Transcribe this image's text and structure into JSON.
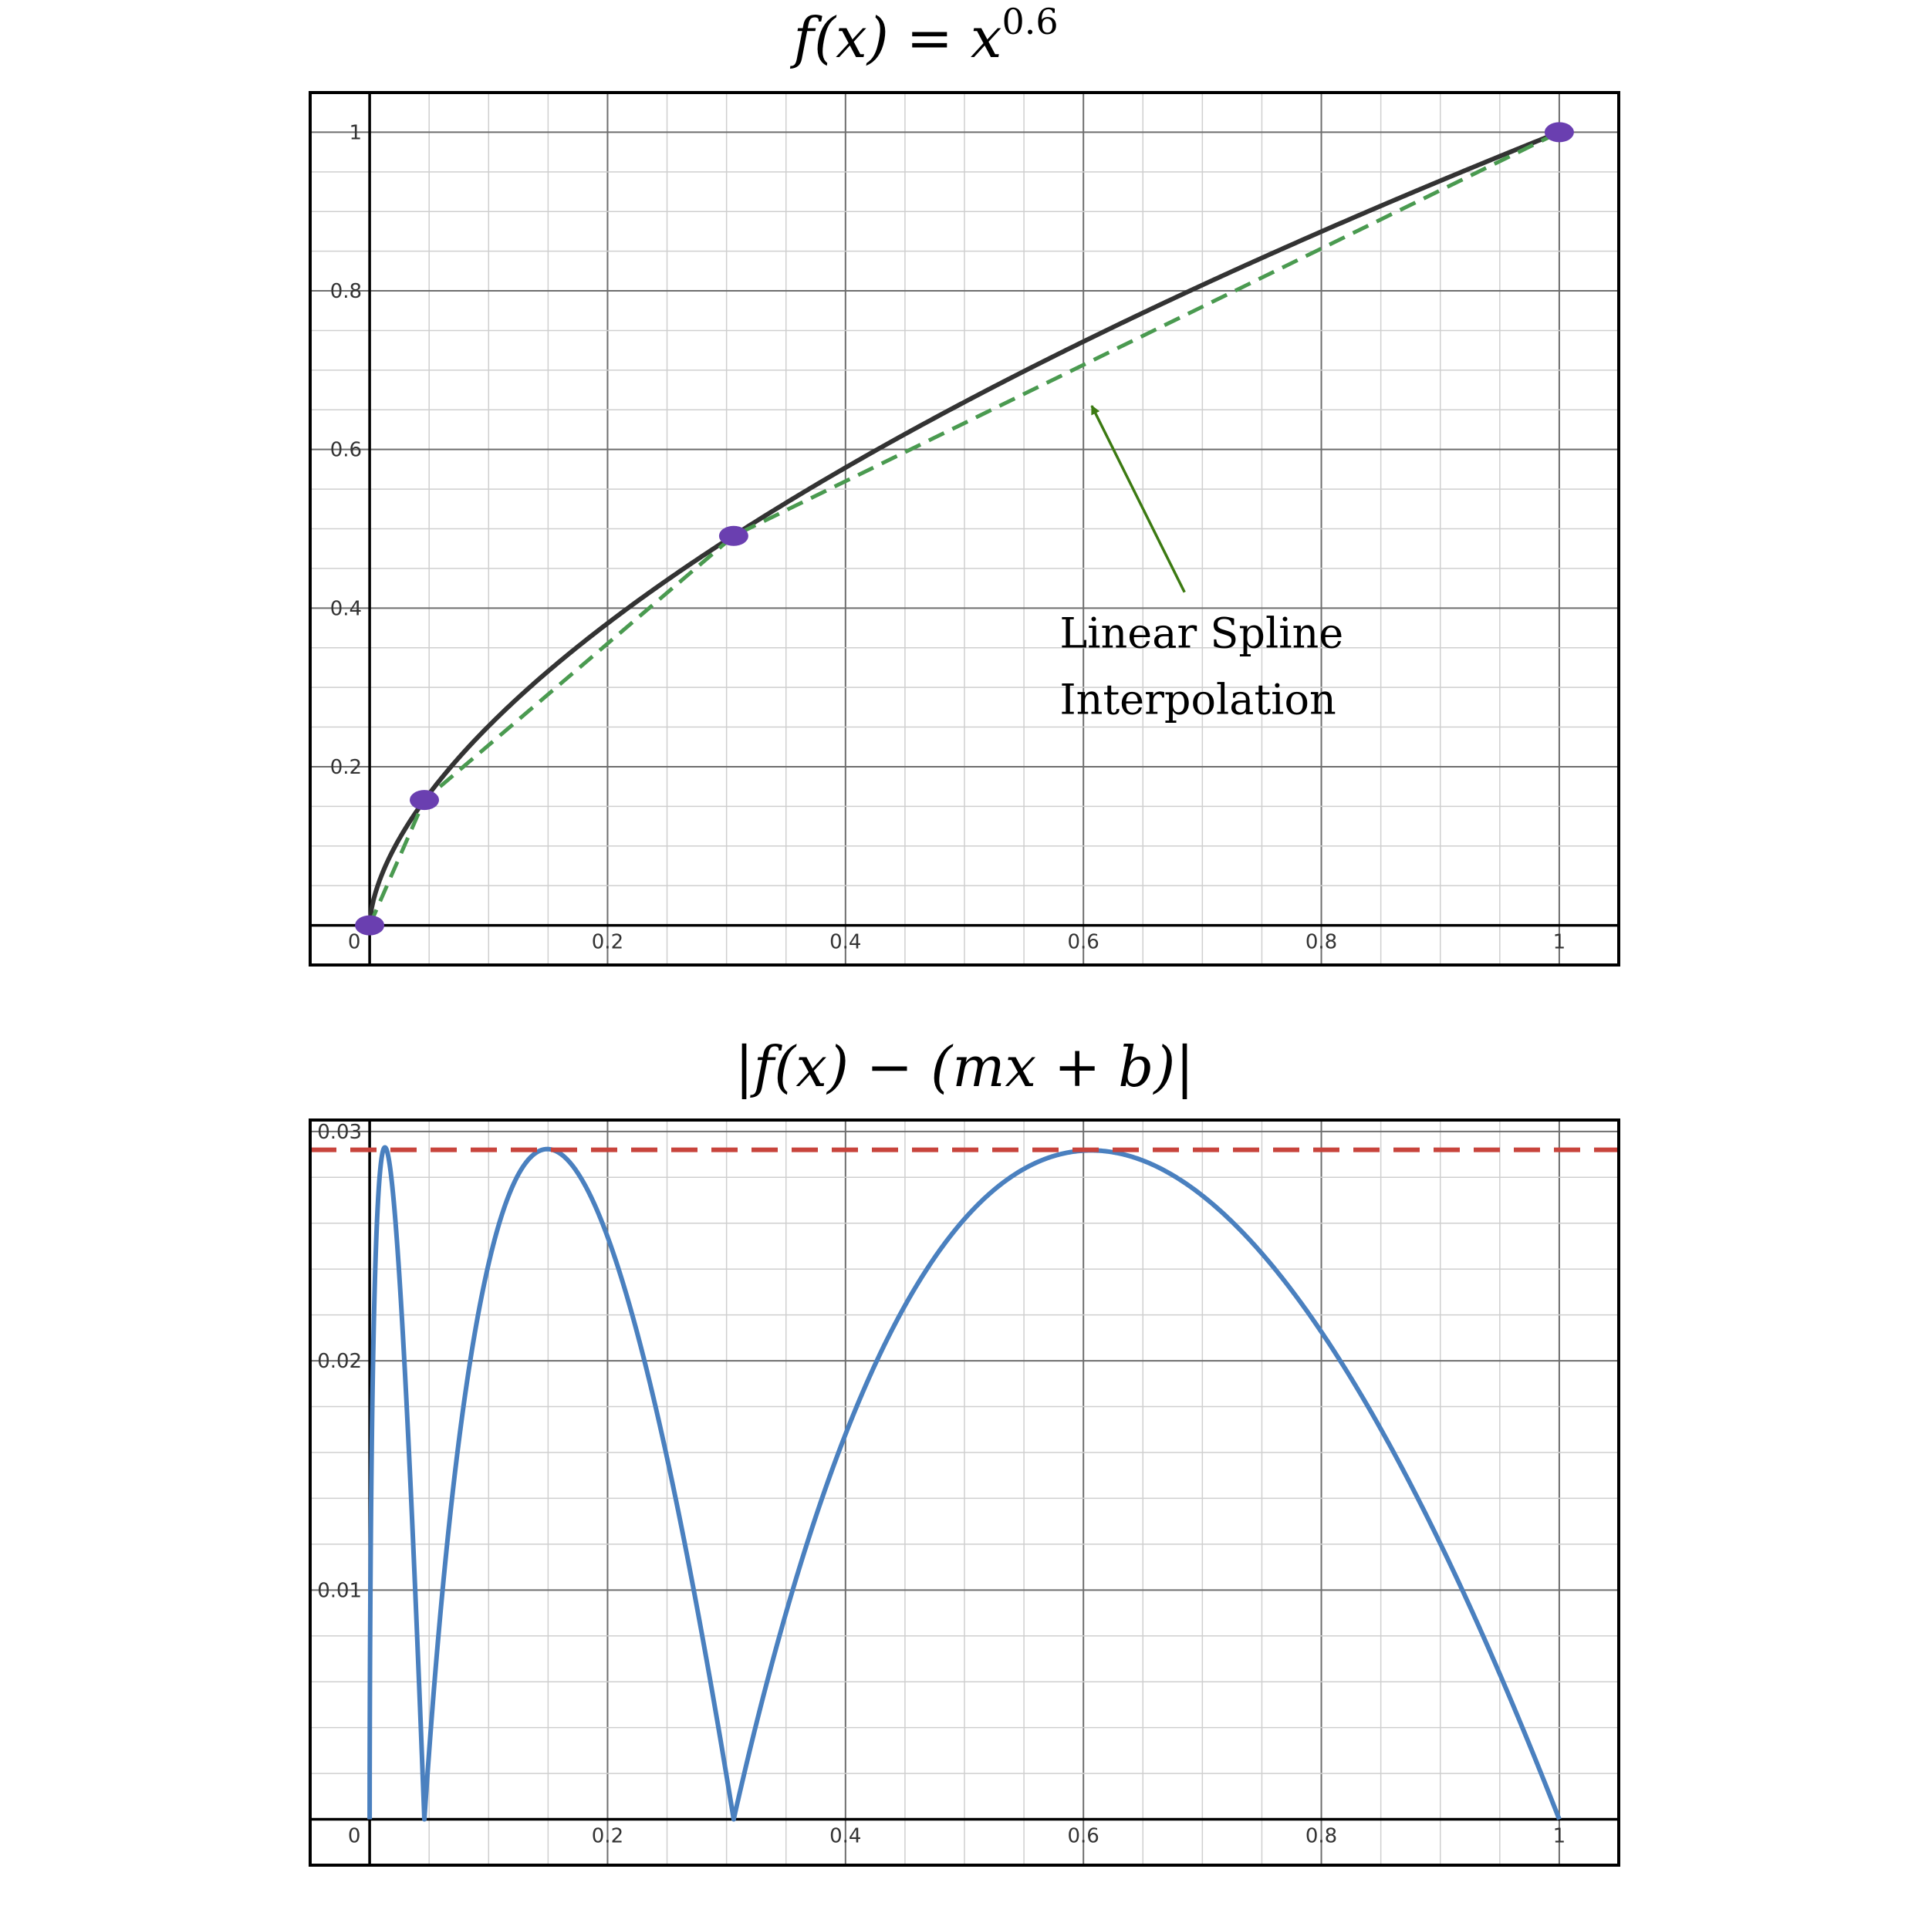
{
  "chart_data": [
    {
      "type": "line",
      "title": "f(x) = x",
      "title_exponent": "0.6",
      "xlim": [
        -0.05,
        1.05
      ],
      "ylim": [
        -0.05,
        1.05
      ],
      "x_ticks": [
        {
          "value": 0,
          "label": "0"
        },
        {
          "value": 0.2,
          "label": "0.2"
        },
        {
          "value": 0.4,
          "label": "0.4"
        },
        {
          "value": 0.6,
          "label": "0.6"
        },
        {
          "value": 0.8,
          "label": "0.8"
        },
        {
          "value": 1,
          "label": "1"
        }
      ],
      "y_ticks": [
        {
          "value": 0.2,
          "label": "0.2"
        },
        {
          "value": 0.4,
          "label": "0.4"
        },
        {
          "value": 0.6,
          "label": "0.6"
        },
        {
          "value": 0.8,
          "label": "0.8"
        },
        {
          "value": 1,
          "label": "1"
        }
      ],
      "grid": true,
      "series": [
        {
          "style": "solid",
          "color": "#333333",
          "function": "x^0.6",
          "domain": [
            0,
            1
          ]
        },
        {
          "style": "dashed",
          "color": "#4a9a50",
          "x": [
            0,
            0.046,
            0.306,
            1
          ],
          "y": [
            0,
            0.158,
            0.491,
            1
          ]
        }
      ],
      "points": {
        "color": "#6a3fb0",
        "x": [
          0,
          0.046,
          0.306,
          1
        ],
        "y": [
          0,
          0.158,
          0.491,
          1
        ]
      },
      "annotation": {
        "lines": [
          "Linear Spline",
          "Interpolation"
        ],
        "text_at": [
          0.58,
          0.35
        ],
        "arrow_from": [
          0.685,
          0.42
        ],
        "arrow_to": [
          0.607,
          0.655
        ],
        "color": "#3c7a12"
      }
    },
    {
      "type": "line",
      "title": "|f(x) − (mx + b)|",
      "xlim": [
        -0.05,
        1.05
      ],
      "ylim": [
        -0.002,
        0.0305
      ],
      "x_ticks": [
        {
          "value": 0,
          "label": "0"
        },
        {
          "value": 0.2,
          "label": "0.2"
        },
        {
          "value": 0.4,
          "label": "0.4"
        },
        {
          "value": 0.6,
          "label": "0.6"
        },
        {
          "value": 0.8,
          "label": "0.8"
        },
        {
          "value": 1,
          "label": "1"
        }
      ],
      "y_ticks": [
        {
          "value": 0.01,
          "label": "0.01"
        },
        {
          "value": 0.02,
          "label": "0.02"
        },
        {
          "value": 0.03,
          "label": "0.03"
        }
      ],
      "grid": true,
      "series": [
        {
          "style": "solid",
          "color": "#4a80bf",
          "function": "abs(x^0.6 - linear_spline(x))",
          "knots_x": [
            0,
            0.046,
            0.306,
            1
          ]
        },
        {
          "style": "dashed",
          "color": "#c8443c",
          "y": 0.0292
        }
      ]
    }
  ]
}
